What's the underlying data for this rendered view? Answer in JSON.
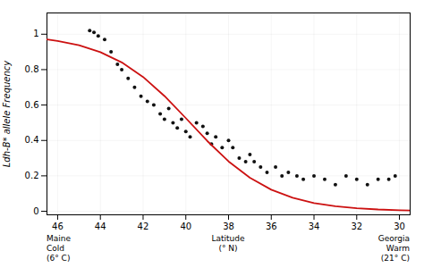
{
  "chart_data": {
    "type": "scatter",
    "ylabel": "Ldh-B* allele Frequency",
    "xlim": [
      46.5,
      29.5
    ],
    "ylim": [
      -0.02,
      1.12
    ],
    "xticks": [
      46,
      44,
      42,
      40,
      38,
      36,
      34,
      32,
      30
    ],
    "yticks": [
      0,
      0.2,
      0.4,
      0.6,
      0.8,
      1
    ],
    "grid": true,
    "annotations": [
      "Maine\nCold\n(6° C)",
      "Latitude\n(° N)",
      "Georgia\nWarm\n(21° C)"
    ],
    "series": [
      {
        "type": "scatter",
        "color": "#111111",
        "marker": "circle",
        "x": [
          44.5,
          44.3,
          44.1,
          43.8,
          43.5,
          43.2,
          43.0,
          42.7,
          42.4,
          42.1,
          41.8,
          41.5,
          41.2,
          41.0,
          40.8,
          40.6,
          40.4,
          40.2,
          40.0,
          39.8,
          39.5,
          39.2,
          39.0,
          38.8,
          38.6,
          38.3,
          38.0,
          37.8,
          37.5,
          37.2,
          37.0,
          36.8,
          36.5,
          36.2,
          35.8,
          35.5,
          35.2,
          34.8,
          34.5,
          34.0,
          33.5,
          33.0,
          32.5,
          32.0,
          31.5,
          31.0,
          30.5,
          30.2
        ],
        "values": [
          1.02,
          1.01,
          0.99,
          0.97,
          0.9,
          0.83,
          0.8,
          0.75,
          0.7,
          0.65,
          0.62,
          0.6,
          0.55,
          0.52,
          0.58,
          0.5,
          0.47,
          0.52,
          0.45,
          0.42,
          0.5,
          0.48,
          0.44,
          0.38,
          0.42,
          0.36,
          0.4,
          0.36,
          0.3,
          0.28,
          0.32,
          0.28,
          0.25,
          0.22,
          0.25,
          0.2,
          0.22,
          0.2,
          0.18,
          0.2,
          0.18,
          0.15,
          0.2,
          0.18,
          0.15,
          0.18,
          0.18,
          0.2
        ]
      },
      {
        "type": "line",
        "color": "#cc1111",
        "line_style": "solid",
        "x": [
          29.5,
          30,
          31,
          32,
          33,
          34,
          35,
          36,
          37,
          38,
          39,
          40,
          41,
          42,
          43,
          44,
          45,
          46,
          46.5
        ],
        "values": [
          0.0047,
          0.0061,
          0.0102,
          0.017,
          0.0283,
          0.0467,
          0.0761,
          0.1217,
          0.1891,
          0.2817,
          0.3975,
          0.526,
          0.6511,
          0.7584,
          0.8408,
          0.8988,
          0.9373,
          0.9617,
          0.9702
        ]
      }
    ]
  }
}
